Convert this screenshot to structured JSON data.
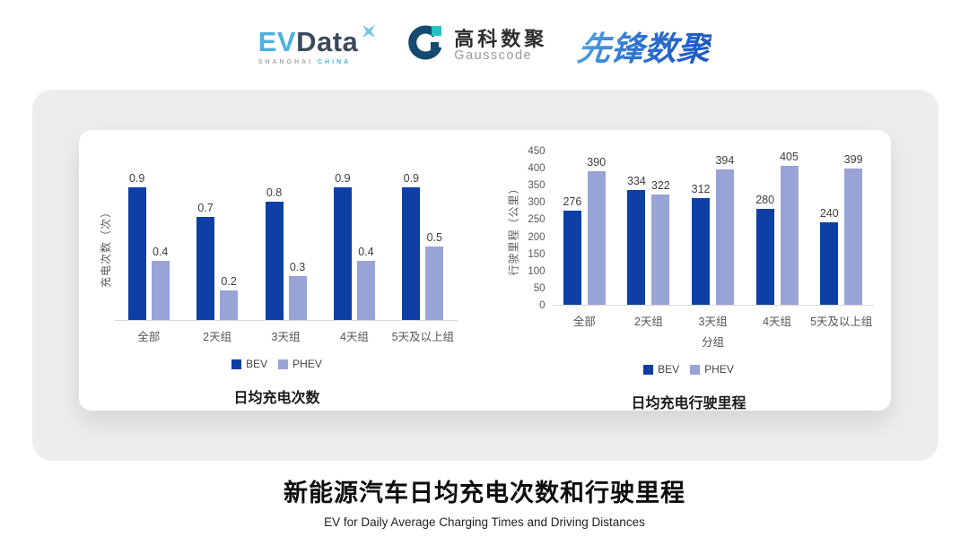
{
  "header": {
    "evdata": {
      "ev": "EV",
      "data": "Data",
      "sub_left": "SHANGHAI",
      "sub_right": "CHINA"
    },
    "gausscode": {
      "cn": "高科数聚",
      "en": "Gausscode"
    },
    "xianfeng": "先锋数聚"
  },
  "footer": {
    "title": "新能源汽车日均充电次数和行驶里程",
    "subtitle": "EV for Daily Average Charging Times and Driving Distances"
  },
  "colors": {
    "bev": "#0e3fa5",
    "phev": "#98a3d6",
    "panel": "#ededee",
    "baseline": "#d9d9d9"
  },
  "chart_data": [
    {
      "type": "bar",
      "title": "日均充电次数",
      "ylabel": "充电次数（次）",
      "xlabel": "",
      "categories": [
        "全部",
        "2天组",
        "3天组",
        "4天组",
        "5天及以上组"
      ],
      "series": [
        {
          "name": "BEV",
          "color": "#0e3fa5",
          "values": [
            0.9,
            0.7,
            0.8,
            0.9,
            0.9
          ]
        },
        {
          "name": "PHEV",
          "color": "#98a3d6",
          "values": [
            0.4,
            0.2,
            0.3,
            0.4,
            0.5
          ]
        }
      ],
      "ylim": [
        0,
        1.0
      ],
      "yticks": [],
      "grid": false,
      "legend_position": "bottom"
    },
    {
      "type": "bar",
      "title": "日均充电行驶里程",
      "ylabel": "行驶里程（公里）",
      "xlabel": "分组",
      "categories": [
        "全部",
        "2天组",
        "3天组",
        "4天组",
        "5天及以上组"
      ],
      "series": [
        {
          "name": "BEV",
          "color": "#0e3fa5",
          "values": [
            276,
            334,
            312,
            280,
            240
          ]
        },
        {
          "name": "PHEV",
          "color": "#98a3d6",
          "values": [
            390,
            322,
            394,
            405,
            399
          ]
        }
      ],
      "ylim": [
        0,
        450
      ],
      "yticks": [
        0,
        50,
        100,
        150,
        200,
        250,
        300,
        350,
        400,
        450
      ],
      "grid": false,
      "legend_position": "bottom"
    }
  ]
}
